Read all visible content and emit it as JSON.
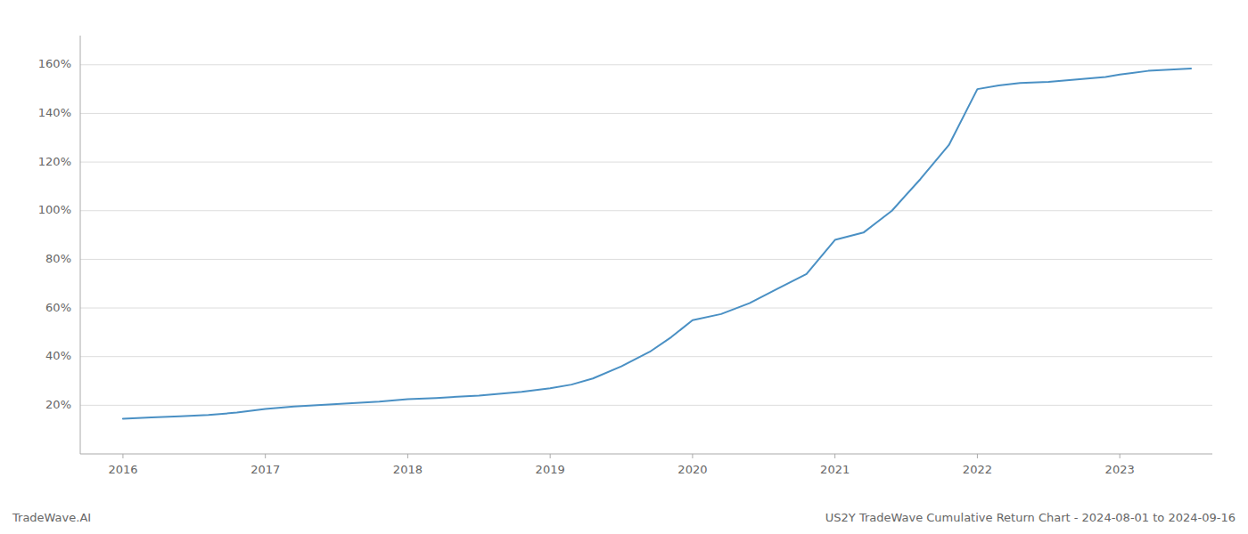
{
  "chart_data": {
    "type": "line",
    "annotations": [
      "TradeWave.AI",
      "US2Y TradeWave Cumulative Return Chart - 2024-08-01 to 2024-09-16"
    ],
    "x": [
      2016.0,
      2016.2,
      2016.4,
      2016.6,
      2016.8,
      2017.0,
      2017.2,
      2017.5,
      2017.8,
      2018.0,
      2018.2,
      2018.5,
      2018.8,
      2019.0,
      2019.15,
      2019.3,
      2019.5,
      2019.7,
      2019.85,
      2020.0,
      2020.2,
      2020.4,
      2020.6,
      2020.8,
      2021.0,
      2021.2,
      2021.4,
      2021.6,
      2021.8,
      2022.0,
      2022.15,
      2022.3,
      2022.5,
      2022.7,
      2022.9,
      2023.0,
      2023.2,
      2023.5
    ],
    "values": [
      14.5,
      15.0,
      15.5,
      16.0,
      17.0,
      18.5,
      19.5,
      20.5,
      21.5,
      22.5,
      23.0,
      24.0,
      25.5,
      27.0,
      28.5,
      31.0,
      36.0,
      42.0,
      48.0,
      55.0,
      57.5,
      62.0,
      68.0,
      74.0,
      88.0,
      91.0,
      100.0,
      113.0,
      127.0,
      150.0,
      151.5,
      152.5,
      153.0,
      154.0,
      155.0,
      156.0,
      157.5,
      158.5
    ],
    "color": "#4a90c4",
    "xlim": [
      2015.7,
      2023.65
    ],
    "ylim": [
      0,
      172
    ],
    "xticks": [
      2016,
      2017,
      2018,
      2019,
      2020,
      2021,
      2022,
      2023
    ],
    "yticks": [
      {
        "value": 20,
        "label": "20%"
      },
      {
        "value": 40,
        "label": "40%"
      },
      {
        "value": 60,
        "label": "60%"
      },
      {
        "value": 80,
        "label": "80%"
      },
      {
        "value": 100,
        "label": "100%"
      },
      {
        "value": 120,
        "label": "120%"
      },
      {
        "value": 140,
        "label": "140%"
      },
      {
        "value": 160,
        "label": "160%"
      }
    ],
    "grid": true
  }
}
